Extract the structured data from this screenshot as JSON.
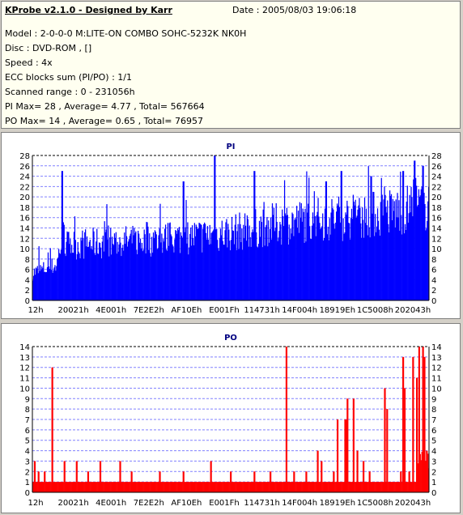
{
  "header": {
    "title": "KProbe v2.1.0 - Designed by Karr",
    "date": "Date : 2005/08/03 19:06:18",
    "lines": [
      "Model : 2-0-0-0 M:LITE-ON COMBO SOHC-5232K NK0H",
      "Disc : DVD-ROM ,  []",
      "Speed : 4x",
      "ECC blocks sum (PI/PO) : 1/1",
      "Scanned range : 0 - 231056h",
      "PI Max= 28 , Average= 4.77 , Total= 567664",
      "PO Max= 14 , Average= 0.65 , Total= 76957"
    ]
  },
  "chart_data": [
    {
      "type": "bar",
      "title": "PI",
      "x_range": [
        0,
        2363478
      ],
      "x_unit": "sector (hex labels)",
      "x_tick_labels": [
        "12h",
        "20021h",
        "4E001h",
        "7E2E2h",
        "AF10Eh",
        "E001Fh",
        "114731h",
        "14F004h",
        "18919Eh",
        "1C5008h",
        "202043h"
      ],
      "y_ticks": [
        0,
        2,
        4,
        6,
        8,
        10,
        12,
        14,
        16,
        18,
        20,
        22,
        24,
        26,
        28
      ],
      "ylim": [
        0,
        28
      ],
      "color": "#0000ff",
      "max": 28,
      "average": 4.77,
      "total": 567664,
      "trend": [
        [
          0,
          5.5
        ],
        [
          0.06,
          7
        ],
        [
          0.07,
          11
        ],
        [
          0.2,
          11.5
        ],
        [
          0.3,
          12
        ],
        [
          0.45,
          13
        ],
        [
          0.55,
          14
        ],
        [
          0.6,
          15
        ],
        [
          0.7,
          16
        ],
        [
          0.8,
          16.5
        ],
        [
          0.9,
          17.5
        ],
        [
          1.0,
          19
        ]
      ],
      "peaks": [
        [
          0.075,
          25
        ],
        [
          0.38,
          23
        ],
        [
          0.46,
          28
        ],
        [
          0.56,
          25
        ],
        [
          0.74,
          23
        ],
        [
          0.78,
          25
        ],
        [
          0.855,
          24
        ],
        [
          0.935,
          25
        ],
        [
          0.965,
          27
        ],
        [
          0.985,
          26
        ]
      ],
      "samples": 520
    },
    {
      "type": "bar",
      "title": "PO",
      "x_range": [
        0,
        2363478
      ],
      "x_unit": "sector (hex labels)",
      "x_tick_labels": [
        "12h",
        "20021h",
        "4E001h",
        "7E2E2h",
        "AF10Eh",
        "E001Fh",
        "114731h",
        "14F004h",
        "18919Eh",
        "1C5008h",
        "202043h"
      ],
      "y_ticks": [
        0,
        1,
        2,
        3,
        4,
        5,
        6,
        7,
        8,
        9,
        10,
        11,
        12,
        13,
        14
      ],
      "ylim": [
        0,
        14
      ],
      "color": "#ff0000",
      "max": 14,
      "average": 0.65,
      "total": 76957,
      "baseline": 1,
      "spikes": [
        [
          0.005,
          3
        ],
        [
          0.015,
          2
        ],
        [
          0.03,
          2
        ],
        [
          0.05,
          12
        ],
        [
          0.08,
          3
        ],
        [
          0.11,
          3
        ],
        [
          0.14,
          2
        ],
        [
          0.17,
          3
        ],
        [
          0.22,
          3
        ],
        [
          0.25,
          2
        ],
        [
          0.32,
          2
        ],
        [
          0.38,
          2
        ],
        [
          0.45,
          3
        ],
        [
          0.5,
          2
        ],
        [
          0.56,
          2
        ],
        [
          0.6,
          2
        ],
        [
          0.66,
          2
        ],
        [
          0.69,
          2
        ],
        [
          0.72,
          4
        ],
        [
          0.73,
          3
        ],
        [
          0.76,
          2
        ],
        [
          0.77,
          7
        ],
        [
          0.795,
          9
        ],
        [
          0.81,
          9
        ],
        [
          0.82,
          4
        ],
        [
          0.835,
          3
        ],
        [
          0.85,
          2
        ],
        [
          0.89,
          10
        ],
        [
          0.895,
          8
        ],
        [
          0.93,
          2
        ],
        [
          0.935,
          13
        ],
        [
          0.94,
          10
        ],
        [
          0.95,
          2
        ],
        [
          0.97,
          11
        ],
        [
          0.975,
          14
        ],
        [
          0.985,
          14
        ],
        [
          0.99,
          13
        ],
        [
          0.995,
          4
        ]
      ],
      "big_spikes": [
        [
          0.64,
          14
        ],
        [
          0.79,
          7
        ],
        [
          0.96,
          13
        ]
      ],
      "samples": 520
    }
  ]
}
